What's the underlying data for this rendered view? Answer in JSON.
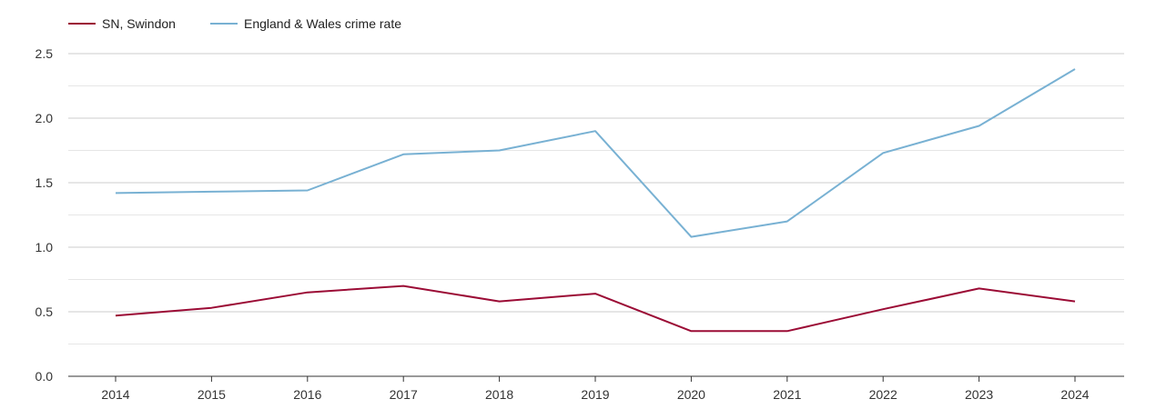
{
  "chart_data": {
    "type": "line",
    "title": "",
    "xlabel": "",
    "ylabel": "",
    "categories": [
      "2014",
      "2015",
      "2016",
      "2017",
      "2018",
      "2019",
      "2020",
      "2021",
      "2022",
      "2023",
      "2024"
    ],
    "series": [
      {
        "name": "SN, Swindon",
        "color": "#9b0b35",
        "values": [
          0.47,
          0.53,
          0.65,
          0.7,
          0.58,
          0.64,
          0.35,
          0.35,
          0.52,
          0.68,
          0.58
        ]
      },
      {
        "name": "England & Wales crime rate",
        "color": "#78b1d3",
        "values": [
          1.42,
          1.43,
          1.44,
          1.72,
          1.75,
          1.9,
          1.08,
          1.2,
          1.73,
          1.94,
          2.38
        ]
      }
    ],
    "ylim": [
      0,
      2.5
    ],
    "yticks": [
      "0.0",
      "0.5",
      "1.0",
      "1.5",
      "2.0",
      "2.5"
    ],
    "grid": true,
    "legend_position": "top-left"
  }
}
